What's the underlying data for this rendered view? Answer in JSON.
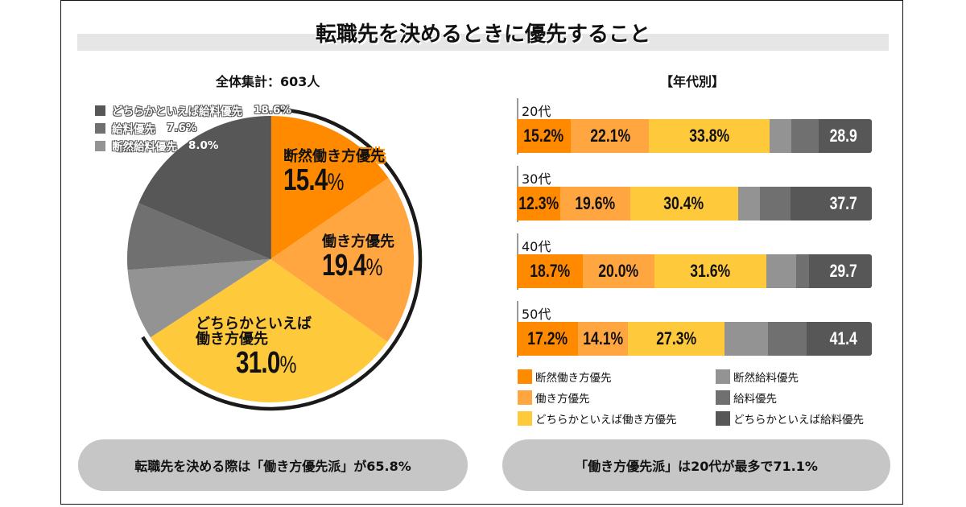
{
  "title": "転職先を決めるときに優先すること",
  "colors": {
    "strong_work": "#ff8a00",
    "work": "#ffa640",
    "lean_work": "#ffc93c",
    "strong_salary": "#939393",
    "salary": "#707070",
    "lean_salary": "#575757"
  },
  "chart_data": [
    {
      "type": "pie",
      "title": "全体集計：603人",
      "start": "top",
      "direction": "clockwise",
      "slices": [
        {
          "key": "strong_work",
          "label": "断然働き方優先",
          "value": 15.4,
          "display": "15.4",
          "unit": "%"
        },
        {
          "key": "work",
          "label": "働き方優先",
          "value": 19.4,
          "display": "19.4",
          "unit": "%"
        },
        {
          "key": "lean_work",
          "label_line1": "どちらかといえば",
          "label_line2": "働き方優先",
          "label": "どちらかといえば働き方優先",
          "value": 31.0,
          "display": "31.0",
          "unit": "%"
        },
        {
          "key": "strong_salary",
          "label": "断然給料優先",
          "value": 8.0,
          "display": "8.0%"
        },
        {
          "key": "salary",
          "label": "給料優先",
          "value": 7.6,
          "display": "7.6%"
        },
        {
          "key": "lean_salary",
          "label": "どちらかといえば給料優先",
          "value": 18.6,
          "display": "18.6%"
        }
      ]
    },
    {
      "type": "bar",
      "orientation": "horizontal",
      "stacked": true,
      "title": "【年代別】",
      "categories": [
        "20代",
        "30代",
        "40代",
        "50代"
      ],
      "series": [
        {
          "key": "strong_work",
          "name": "断然働き方優先",
          "values": [
            15.2,
            12.3,
            18.7,
            17.2
          ],
          "labels": [
            "15.2%",
            "12.3%",
            "18.7%",
            "17.2%"
          ]
        },
        {
          "key": "work",
          "name": "働き方優先",
          "values": [
            22.1,
            19.6,
            20.0,
            14.1
          ],
          "labels": [
            "22.1%",
            "19.6%",
            "20.0%",
            "14.1%"
          ]
        },
        {
          "key": "lean_work",
          "name": "どちらかといえば働き方優先",
          "values": [
            33.8,
            30.4,
            31.6,
            27.3
          ],
          "labels": [
            "33.8%",
            "30.4%",
            "31.6%",
            "27.3%"
          ]
        },
        {
          "key": "strong_salary",
          "name": "断然給料優先",
          "values": [
            6.3,
            6.1,
            8.4,
            12.2
          ]
        },
        {
          "key": "salary",
          "name": "給料優先",
          "values": [
            7.7,
            8.8,
            3.6,
            10.9
          ]
        },
        {
          "key": "lean_salary",
          "name": "どちらかといえば給料優先",
          "values": [
            14.9,
            22.8,
            17.7,
            18.3
          ]
        }
      ],
      "salary_totals": [
        "28.9",
        "37.7",
        "29.7",
        "41.4"
      ],
      "xlim": [
        0,
        100
      ]
    }
  ],
  "legend": [
    {
      "key": "strong_work",
      "label": "断然働き方優先"
    },
    {
      "key": "work",
      "label": "働き方優先"
    },
    {
      "key": "lean_work",
      "label": "どちらかといえば働き方優先"
    },
    {
      "key": "strong_salary",
      "label": "断然給料優先"
    },
    {
      "key": "salary",
      "label": "給料優先"
    },
    {
      "key": "lean_salary",
      "label": "どちらかといえば給料優先"
    }
  ],
  "summary": {
    "left": "転職先を決める際は「働き方優先派」が65.8%",
    "right": "「働き方優先派」は20代が最多で71.1%"
  }
}
